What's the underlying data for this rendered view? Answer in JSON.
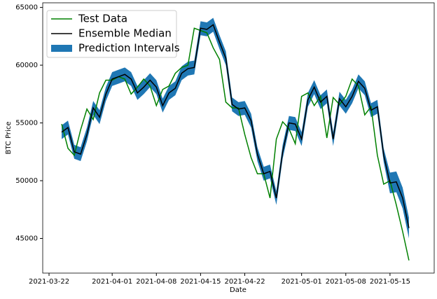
{
  "chart_data": {
    "type": "line",
    "x": [
      "2021-03-24",
      "2021-03-25",
      "2021-03-26",
      "2021-03-27",
      "2021-03-28",
      "2021-03-29",
      "2021-03-30",
      "2021-03-31",
      "2021-04-01",
      "2021-04-02",
      "2021-04-03",
      "2021-04-04",
      "2021-04-05",
      "2021-04-06",
      "2021-04-07",
      "2021-04-08",
      "2021-04-09",
      "2021-04-10",
      "2021-04-11",
      "2021-04-12",
      "2021-04-13",
      "2021-04-14",
      "2021-04-15",
      "2021-04-16",
      "2021-04-17",
      "2021-04-18",
      "2021-04-19",
      "2021-04-20",
      "2021-04-21",
      "2021-04-22",
      "2021-04-23",
      "2021-04-24",
      "2021-04-25",
      "2021-04-26",
      "2021-04-27",
      "2021-04-28",
      "2021-04-29",
      "2021-04-30",
      "2021-05-01",
      "2021-05-02",
      "2021-05-03",
      "2021-05-04",
      "2021-05-05",
      "2021-05-06",
      "2021-05-07",
      "2021-05-08",
      "2021-05-09",
      "2021-05-10",
      "2021-05-11",
      "2021-05-12",
      "2021-05-13",
      "2021-05-14",
      "2021-05-15",
      "2021-05-16",
      "2021-05-17",
      "2021-05-18"
    ],
    "series": [
      {
        "name": "Test Data",
        "color": "#008000",
        "values": [
          54900,
          52800,
          52200,
          54400,
          56200,
          55300,
          57600,
          58700,
          58700,
          59000,
          58800,
          57500,
          58100,
          58800,
          58200,
          56500,
          57900,
          58200,
          59300,
          59800,
          60000,
          63200,
          63000,
          62800,
          61500,
          60500,
          56800,
          56300,
          56300,
          54000,
          52000,
          50600,
          50600,
          48500,
          53600,
          55100,
          54500,
          53200,
          57300,
          57600,
          56500,
          57300,
          53700,
          57200,
          56600,
          57300,
          58800,
          58200,
          55700,
          56400,
          52200,
          49700,
          50000,
          47900,
          45600,
          43100
        ]
      },
      {
        "name": "Ensemble Median",
        "color": "#000000",
        "values": [
          54200,
          54600,
          52500,
          52300,
          54000,
          56300,
          55500,
          57500,
          58800,
          59000,
          59200,
          58800,
          57600,
          58100,
          58700,
          58100,
          56500,
          57600,
          58000,
          59300,
          59700,
          59800,
          63200,
          63100,
          63500,
          62000,
          60600,
          56600,
          56200,
          56300,
          55200,
          52300,
          50600,
          50800,
          48500,
          52500,
          55000,
          54900,
          53600,
          57000,
          58100,
          56800,
          57300,
          53600,
          57100,
          56400,
          57300,
          58600,
          58000,
          56100,
          56400,
          52200,
          49800,
          49900,
          48500,
          45900
        ]
      },
      {
        "name": "Prediction Intervals",
        "color": "#1f77b4",
        "upper": [
          54800,
          55200,
          53100,
          52900,
          54600,
          56900,
          56100,
          58100,
          59400,
          59600,
          59800,
          59400,
          58200,
          58700,
          59300,
          58700,
          57100,
          58200,
          58600,
          59900,
          60300,
          60400,
          63800,
          63700,
          64100,
          62600,
          61200,
          57200,
          56800,
          56900,
          55800,
          52900,
          51200,
          51400,
          49100,
          53100,
          55600,
          55500,
          54200,
          57600,
          58700,
          57400,
          57900,
          54200,
          57700,
          57000,
          57900,
          59200,
          58600,
          56700,
          57000,
          52800,
          50700,
          50800,
          49400,
          46800
        ],
        "lower": [
          53600,
          54000,
          51900,
          51700,
          53400,
          55700,
          54900,
          56900,
          58200,
          58400,
          58600,
          58200,
          57000,
          57500,
          58100,
          57500,
          55900,
          57000,
          57400,
          58700,
          59100,
          59200,
          62600,
          62500,
          62900,
          61400,
          60000,
          56000,
          55600,
          55700,
          54600,
          51700,
          50000,
          50200,
          47900,
          51900,
          54400,
          54300,
          53000,
          56400,
          57500,
          56200,
          56700,
          53000,
          56500,
          55800,
          56700,
          58000,
          57400,
          55500,
          55800,
          51600,
          48900,
          49000,
          47600,
          45000
        ]
      }
    ],
    "x_label": "Date",
    "y_label": "BTC Price",
    "xlim": [
      "2021-03-21",
      "2021-05-22"
    ],
    "xticks": [
      "2021-03-22",
      "2021-04-01",
      "2021-04-08",
      "2021-04-15",
      "2021-04-22",
      "2021-05-01",
      "2021-05-08",
      "2021-05-15"
    ],
    "ylim": [
      42000,
      65400
    ],
    "yticks": [
      45000,
      50000,
      55000,
      60000,
      65000
    ],
    "legend": "upper left"
  }
}
